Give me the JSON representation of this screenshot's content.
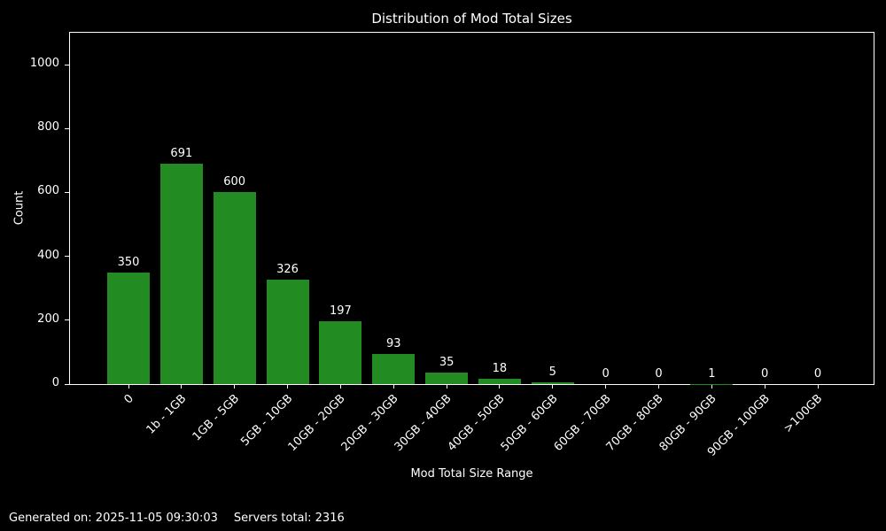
{
  "chart_data": {
    "type": "bar",
    "title": "Distribution of Mod Total Sizes",
    "xlabel": "Mod Total Size Range",
    "ylabel": "Count",
    "categories": [
      "0",
      "1b - 1GB",
      "1GB - 5GB",
      "5GB - 10GB",
      "10GB - 20GB",
      "20GB - 30GB",
      "30GB - 40GB",
      "40GB - 50GB",
      "50GB - 60GB",
      "60GB - 70GB",
      "70GB - 80GB",
      "80GB - 90GB",
      "90GB - 100GB",
      ">100GB"
    ],
    "values": [
      350,
      691,
      600,
      326,
      197,
      93,
      35,
      18,
      5,
      0,
      0,
      1,
      0,
      0
    ],
    "yticks": [
      0,
      200,
      400,
      600,
      800,
      1000
    ],
    "ylim": [
      0,
      1100
    ],
    "grid": false,
    "legend": null,
    "bar_color": "#228B22",
    "background_color": "#000000",
    "text_color": "#ffffff",
    "spine_color": "#ffffff",
    "x_tick_rotation_deg": 45
  },
  "footer": {
    "generated": "Generated on: 2025-11-05 09:30:03",
    "servers_total": "Servers total: 2316"
  }
}
